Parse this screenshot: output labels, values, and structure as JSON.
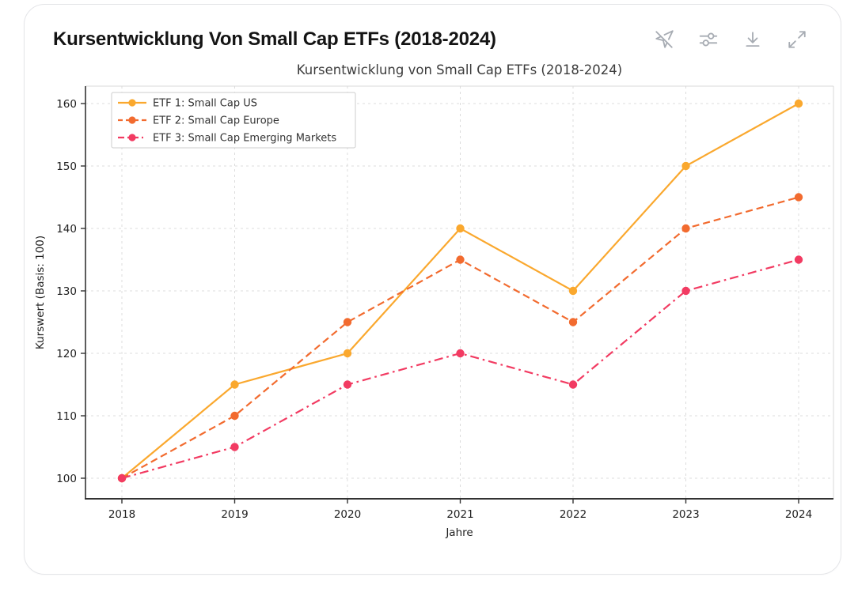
{
  "header": {
    "title": "Kursentwicklung Von Small Cap ETFs (2018-2024)"
  },
  "toolbar": {
    "icons": [
      {
        "name": "cursor-off-icon"
      },
      {
        "name": "sliders-icon"
      },
      {
        "name": "download-icon"
      },
      {
        "name": "expand-icon"
      }
    ],
    "icon_color": "#a7acb3"
  },
  "chart_data": {
    "type": "line",
    "title": "Kursentwicklung von Small Cap ETFs (2018-2024)",
    "xlabel": "Jahre",
    "ylabel": "Kurswert (Basis: 100)",
    "x": [
      2018,
      2019,
      2020,
      2021,
      2022,
      2023,
      2024
    ],
    "yticks": [
      100,
      110,
      120,
      130,
      140,
      150,
      160
    ],
    "ylim": [
      97,
      163
    ],
    "grid": true,
    "grid_color": "#dcdcdc",
    "legend_position": "upper-left",
    "series": [
      {
        "name": "ETF 1: Small Cap US",
        "color": "#FAA82E",
        "dash": "solid",
        "values": [
          100,
          115,
          120,
          140,
          130,
          150,
          160
        ]
      },
      {
        "name": "ETF 2: Small Cap Europe",
        "color": "#F26B2F",
        "dash": "dashed",
        "values": [
          100,
          110,
          125,
          135,
          125,
          140,
          145
        ]
      },
      {
        "name": "ETF 3: Small Cap Emerging Markets",
        "color": "#F23B62",
        "dash": "dashdot",
        "values": [
          100,
          105,
          115,
          120,
          115,
          130,
          135
        ]
      }
    ],
    "text_color": "#212121",
    "title_color": "#3c3c3c",
    "spine_dark": "#333333",
    "spine_light": "#d9d9d9"
  }
}
